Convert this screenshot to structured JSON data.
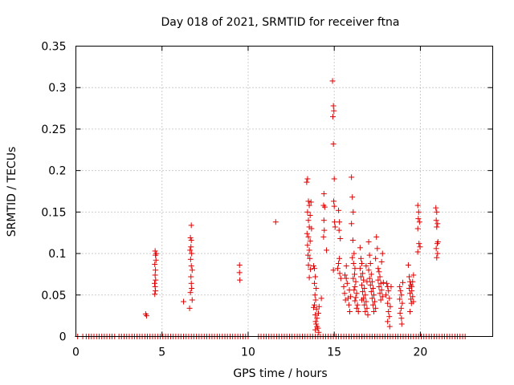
{
  "chart_data": {
    "type": "scatter",
    "title": "Day 018 of 2021, SRMTID for receiver ftna",
    "xlabel": "GPS time / hours",
    "ylabel": "SRMTID / TECUs",
    "xlim": [
      0,
      24.2
    ],
    "ylim": [
      0,
      0.35
    ],
    "xticks": [
      0,
      5,
      10,
      15,
      20
    ],
    "xtick_labels": [
      "0",
      "5",
      "10",
      "15",
      "20"
    ],
    "yticks": [
      0,
      0.05,
      0.1,
      0.15,
      0.2,
      0.25,
      0.3,
      0.35
    ],
    "ytick_labels": [
      "0",
      "0.05",
      "0.1",
      "0.15",
      "0.2",
      "0.25",
      "0.3",
      "0.35"
    ],
    "grid": true,
    "marker": "+",
    "marker_color": "#e00000",
    "zero_baseline_x": [
      0.1,
      0.4,
      0.6,
      0.75,
      0.9,
      1.05,
      1.2,
      1.35,
      1.5,
      1.65,
      1.8,
      1.95,
      2.1,
      2.25,
      2.5,
      2.65,
      2.8,
      2.95,
      3.1,
      3.25,
      3.4,
      3.55,
      3.7,
      3.85,
      4.0,
      4.15,
      4.3,
      4.45,
      4.6,
      4.75,
      4.9,
      5.05,
      5.2,
      5.35,
      5.5,
      5.65,
      5.8,
      5.95,
      6.1,
      6.25,
      6.4,
      6.55,
      6.7,
      6.85,
      7.0,
      7.15,
      7.3,
      7.45,
      7.6,
      7.75,
      7.9,
      8.05,
      8.2,
      8.35,
      8.5,
      8.65,
      8.8,
      8.95,
      9.1,
      9.25,
      9.4,
      9.55,
      9.7,
      9.85,
      10.0,
      10.6,
      10.75,
      10.9,
      11.05,
      11.2,
      11.35,
      11.5,
      11.65,
      11.8,
      11.95,
      12.1,
      12.25,
      12.4,
      12.55,
      12.7,
      12.85,
      13.0,
      13.15,
      13.3,
      13.45,
      13.6,
      13.75,
      13.9,
      14.05,
      14.2,
      14.35,
      14.5,
      14.65,
      14.8,
      14.95,
      15.1,
      15.25,
      15.4,
      15.55,
      15.7,
      15.85,
      16.0,
      16.15,
      16.3,
      16.45,
      16.6,
      16.75,
      16.9,
      17.05,
      17.2,
      17.35,
      17.5,
      17.65,
      17.8,
      17.95,
      18.1,
      18.25,
      18.4,
      18.55,
      18.7,
      18.85,
      19.0,
      19.15,
      19.3,
      19.45,
      19.6,
      19.75,
      19.9,
      20.05,
      20.2,
      20.35,
      20.5,
      20.65,
      20.8,
      20.95,
      21.1,
      21.25,
      21.4,
      21.55,
      21.7,
      21.85,
      22.0,
      22.15,
      22.3,
      22.45,
      22.6
    ],
    "points": [
      [
        4.05,
        0.027
      ],
      [
        4.1,
        0.025
      ],
      [
        4.6,
        0.103
      ],
      [
        4.62,
        0.098
      ],
      [
        4.58,
        0.087
      ],
      [
        4.62,
        0.08
      ],
      [
        4.6,
        0.074
      ],
      [
        4.63,
        0.068
      ],
      [
        4.57,
        0.064
      ],
      [
        4.6,
        0.06
      ],
      [
        4.62,
        0.055
      ],
      [
        4.58,
        0.051
      ],
      [
        4.65,
        0.092
      ],
      [
        4.67,
        0.1
      ],
      [
        6.25,
        0.042
      ],
      [
        6.6,
        0.034
      ],
      [
        6.7,
        0.134
      ],
      [
        6.65,
        0.119
      ],
      [
        6.7,
        0.116
      ],
      [
        6.68,
        0.108
      ],
      [
        6.63,
        0.104
      ],
      [
        6.72,
        0.1
      ],
      [
        6.66,
        0.093
      ],
      [
        6.7,
        0.085
      ],
      [
        6.75,
        0.08
      ],
      [
        6.68,
        0.072
      ],
      [
        6.7,
        0.064
      ],
      [
        6.72,
        0.058
      ],
      [
        6.65,
        0.053
      ],
      [
        6.75,
        0.044
      ],
      [
        9.5,
        0.086
      ],
      [
        9.5,
        0.077
      ],
      [
        9.52,
        0.068
      ],
      [
        11.6,
        0.138
      ],
      [
        13.4,
        0.186
      ],
      [
        13.45,
        0.19
      ],
      [
        13.5,
        0.163
      ],
      [
        13.55,
        0.158
      ],
      [
        13.45,
        0.15
      ],
      [
        13.6,
        0.146
      ],
      [
        13.5,
        0.14
      ],
      [
        13.55,
        0.132
      ],
      [
        13.42,
        0.124
      ],
      [
        13.5,
        0.12
      ],
      [
        13.6,
        0.115
      ],
      [
        13.45,
        0.11
      ],
      [
        13.55,
        0.104
      ],
      [
        13.48,
        0.098
      ],
      [
        13.58,
        0.094
      ],
      [
        13.5,
        0.086
      ],
      [
        13.62,
        0.081
      ],
      [
        13.55,
        0.071
      ],
      [
        13.65,
        0.162
      ],
      [
        13.68,
        0.13
      ],
      [
        13.8,
        0.085
      ],
      [
        13.85,
        0.082
      ],
      [
        13.9,
        0.072
      ],
      [
        13.85,
        0.064
      ],
      [
        13.95,
        0.058
      ],
      [
        13.88,
        0.05
      ],
      [
        13.92,
        0.044
      ],
      [
        13.85,
        0.038
      ],
      [
        13.97,
        0.033
      ],
      [
        13.9,
        0.026
      ],
      [
        14.0,
        0.022
      ],
      [
        13.95,
        0.015
      ],
      [
        14.05,
        0.01
      ],
      [
        13.9,
        0.008
      ],
      [
        14.1,
        0.005
      ],
      [
        14.0,
        0.012
      ],
      [
        14.08,
        0.028
      ],
      [
        13.8,
        0.035
      ],
      [
        13.92,
        0.018
      ],
      [
        14.12,
        0.036
      ],
      [
        14.25,
        0.046
      ],
      [
        14.4,
        0.172
      ],
      [
        14.38,
        0.158
      ],
      [
        14.45,
        0.156
      ],
      [
        14.4,
        0.14
      ],
      [
        14.42,
        0.128
      ],
      [
        14.38,
        0.12
      ],
      [
        14.55,
        0.104
      ],
      [
        14.9,
        0.308
      ],
      [
        14.95,
        0.278
      ],
      [
        14.98,
        0.272
      ],
      [
        14.92,
        0.265
      ],
      [
        14.95,
        0.232
      ],
      [
        15.0,
        0.19
      ],
      [
        14.97,
        0.163
      ],
      [
        15.0,
        0.157
      ],
      [
        15.02,
        0.138
      ],
      [
        15.05,
        0.132
      ],
      [
        14.95,
        0.08
      ],
      [
        15.25,
        0.152
      ],
      [
        15.3,
        0.138
      ],
      [
        15.28,
        0.128
      ],
      [
        15.35,
        0.118
      ],
      [
        15.3,
        0.094
      ],
      [
        15.25,
        0.088
      ],
      [
        15.32,
        0.076
      ],
      [
        15.38,
        0.07
      ],
      [
        15.2,
        0.082
      ],
      [
        15.55,
        0.06
      ],
      [
        15.6,
        0.052
      ],
      [
        15.65,
        0.044
      ],
      [
        15.7,
        0.07
      ],
      [
        15.75,
        0.064
      ],
      [
        15.8,
        0.046
      ],
      [
        15.85,
        0.038
      ],
      [
        15.9,
        0.03
      ],
      [
        15.95,
        0.048
      ],
      [
        15.7,
        0.085
      ],
      [
        15.62,
        0.074
      ],
      [
        15.88,
        0.056
      ],
      [
        16.0,
        0.192
      ],
      [
        16.05,
        0.168
      ],
      [
        16.1,
        0.15
      ],
      [
        16.0,
        0.136
      ],
      [
        16.08,
        0.116
      ],
      [
        16.15,
        0.1
      ],
      [
        16.05,
        0.095
      ],
      [
        16.12,
        0.088
      ],
      [
        16.2,
        0.082
      ],
      [
        16.18,
        0.075
      ],
      [
        16.1,
        0.07
      ],
      [
        16.25,
        0.066
      ],
      [
        16.2,
        0.06
      ],
      [
        16.15,
        0.056
      ],
      [
        16.3,
        0.052
      ],
      [
        16.25,
        0.047
      ],
      [
        16.2,
        0.043
      ],
      [
        16.35,
        0.038
      ],
      [
        16.3,
        0.034
      ],
      [
        16.4,
        0.03
      ],
      [
        16.5,
        0.107
      ],
      [
        16.55,
        0.094
      ],
      [
        16.6,
        0.088
      ],
      [
        16.5,
        0.082
      ],
      [
        16.65,
        0.076
      ],
      [
        16.55,
        0.072
      ],
      [
        16.7,
        0.068
      ],
      [
        16.6,
        0.062
      ],
      [
        16.75,
        0.058
      ],
      [
        16.65,
        0.054
      ],
      [
        16.8,
        0.05
      ],
      [
        16.7,
        0.046
      ],
      [
        16.85,
        0.042
      ],
      [
        16.75,
        0.038
      ],
      [
        16.9,
        0.034
      ],
      [
        16.8,
        0.03
      ],
      [
        16.95,
        0.026
      ],
      [
        16.85,
        0.085
      ],
      [
        16.9,
        0.066
      ],
      [
        16.6,
        0.044
      ],
      [
        17.0,
        0.114
      ],
      [
        17.05,
        0.098
      ],
      [
        17.1,
        0.088
      ],
      [
        17.0,
        0.08
      ],
      [
        17.15,
        0.075
      ],
      [
        17.05,
        0.07
      ],
      [
        17.2,
        0.066
      ],
      [
        17.1,
        0.062
      ],
      [
        17.25,
        0.058
      ],
      [
        17.15,
        0.054
      ],
      [
        17.3,
        0.05
      ],
      [
        17.2,
        0.046
      ],
      [
        17.35,
        0.042
      ],
      [
        17.25,
        0.038
      ],
      [
        17.4,
        0.034
      ],
      [
        17.3,
        0.03
      ],
      [
        17.45,
        0.12
      ],
      [
        17.5,
        0.106
      ],
      [
        17.4,
        0.094
      ],
      [
        17.55,
        0.082
      ],
      [
        17.6,
        0.078
      ],
      [
        17.65,
        0.072
      ],
      [
        17.55,
        0.068
      ],
      [
        17.7,
        0.064
      ],
      [
        17.6,
        0.06
      ],
      [
        17.75,
        0.056
      ],
      [
        17.65,
        0.052
      ],
      [
        17.8,
        0.048
      ],
      [
        17.7,
        0.044
      ],
      [
        17.85,
        0.065
      ],
      [
        17.75,
        0.09
      ],
      [
        17.8,
        0.1
      ],
      [
        18.05,
        0.064
      ],
      [
        18.1,
        0.06
      ],
      [
        18.15,
        0.055
      ],
      [
        18.0,
        0.05
      ],
      [
        18.2,
        0.046
      ],
      [
        18.1,
        0.04
      ],
      [
        18.25,
        0.036
      ],
      [
        18.15,
        0.03
      ],
      [
        18.2,
        0.024
      ],
      [
        18.1,
        0.018
      ],
      [
        18.22,
        0.012
      ],
      [
        18.3,
        0.06
      ],
      [
        18.8,
        0.06
      ],
      [
        18.85,
        0.055
      ],
      [
        18.9,
        0.05
      ],
      [
        18.8,
        0.045
      ],
      [
        18.95,
        0.04
      ],
      [
        18.88,
        0.034
      ],
      [
        18.82,
        0.028
      ],
      [
        18.9,
        0.022
      ],
      [
        18.92,
        0.015
      ],
      [
        18.98,
        0.065
      ],
      [
        19.3,
        0.086
      ],
      [
        19.35,
        0.072
      ],
      [
        19.4,
        0.066
      ],
      [
        19.45,
        0.062
      ],
      [
        19.35,
        0.058
      ],
      [
        19.5,
        0.055
      ],
      [
        19.4,
        0.052
      ],
      [
        19.55,
        0.048
      ],
      [
        19.45,
        0.045
      ],
      [
        19.6,
        0.042
      ],
      [
        19.5,
        0.06
      ],
      [
        19.55,
        0.066
      ],
      [
        19.6,
        0.074
      ],
      [
        19.48,
        0.04
      ],
      [
        19.4,
        0.03
      ],
      [
        19.85,
        0.158
      ],
      [
        19.9,
        0.15
      ],
      [
        19.88,
        0.142
      ],
      [
        19.95,
        0.138
      ],
      [
        19.85,
        0.13
      ],
      [
        19.92,
        0.112
      ],
      [
        19.98,
        0.108
      ],
      [
        19.85,
        0.102
      ],
      [
        20.9,
        0.155
      ],
      [
        20.95,
        0.15
      ],
      [
        20.92,
        0.14
      ],
      [
        21.0,
        0.136
      ],
      [
        20.95,
        0.132
      ],
      [
        21.02,
        0.114
      ],
      [
        20.98,
        0.112
      ],
      [
        20.92,
        0.106
      ],
      [
        21.0,
        0.1
      ],
      [
        20.95,
        0.095
      ]
    ]
  }
}
